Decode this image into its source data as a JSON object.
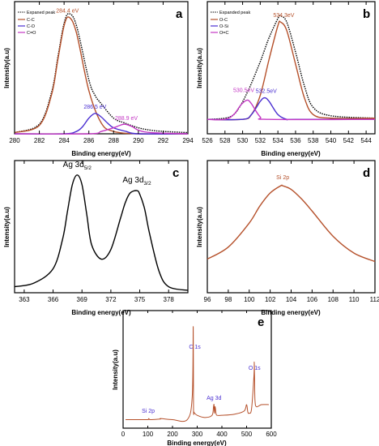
{
  "chart_data": [
    {
      "panel": "a",
      "type": "line",
      "xlabel": "Binding energy(eV)",
      "ylabel": "Intensity(a.u)",
      "xlim": [
        280,
        294
      ],
      "ylim": [
        0,
        1.1
      ],
      "xticks": [
        280,
        282,
        284,
        286,
        288,
        290,
        292,
        294
      ],
      "legend": {
        "placement": "top-left"
      },
      "series": [
        {
          "name": "Expaned peak",
          "color": "#000000",
          "dash": true,
          "x": [
            280,
            282,
            283,
            283.5,
            284,
            284.4,
            285,
            286,
            286.5,
            287,
            288,
            288.9,
            290,
            291,
            292,
            294
          ],
          "values": [
            0.01,
            0.08,
            0.35,
            0.64,
            0.92,
            1.0,
            0.9,
            0.45,
            0.32,
            0.25,
            0.13,
            0.09,
            0.05,
            0.03,
            0.02,
            0.01
          ]
        },
        {
          "name": "C-C",
          "color": "#b5502a",
          "x": [
            280,
            282,
            283,
            283.5,
            284,
            284.4,
            285,
            286,
            287,
            288,
            290,
            294
          ],
          "values": [
            0.01,
            0.07,
            0.33,
            0.62,
            0.9,
            0.97,
            0.84,
            0.36,
            0.09,
            0.02,
            0.0,
            0.0
          ]
        },
        {
          "name": "C-O",
          "color": "#4a2fd1",
          "x": [
            280,
            284,
            285,
            285.5,
            286,
            286.5,
            287,
            287.5,
            288,
            289,
            290,
            294
          ],
          "values": [
            0.0,
            0.0,
            0.02,
            0.06,
            0.13,
            0.17,
            0.14,
            0.09,
            0.05,
            0.02,
            0.0,
            0.0
          ]
        },
        {
          "name": "C=O",
          "color": "#c437c4",
          "x": [
            280,
            286,
            287,
            288,
            288.5,
            288.9,
            289.5,
            290,
            291,
            294
          ],
          "values": [
            0.0,
            0.0,
            0.02,
            0.05,
            0.07,
            0.08,
            0.06,
            0.03,
            0.01,
            0.0
          ]
        }
      ],
      "annotations": [
        {
          "text": "284.4 eV",
          "x": 284.4,
          "color": "#b5502a"
        },
        {
          "text": "286.5 eV",
          "x": 286.5,
          "color": "#4a2fd1"
        },
        {
          "text": "288.9 eV",
          "x": 288.9,
          "color": "#c437c4"
        }
      ]
    },
    {
      "panel": "b",
      "type": "line",
      "xlabel": "Binding energy(eV)",
      "ylabel": "Intensity(a.u)",
      "xlim": [
        526,
        545
      ],
      "ylim": [
        0,
        1.1
      ],
      "xticks": [
        526,
        528,
        530,
        532,
        534,
        536,
        538,
        540,
        542,
        544
      ],
      "legend": {
        "placement": "top-left"
      },
      "series": [
        {
          "name": "Expanded peak",
          "color": "#000000",
          "dash": true,
          "x": [
            526,
            528,
            529,
            529.8,
            530.5,
            531,
            532,
            532.5,
            533,
            534,
            534.3,
            535,
            536,
            537,
            538,
            540,
            545
          ],
          "values": [
            0.12,
            0.13,
            0.16,
            0.24,
            0.34,
            0.42,
            0.6,
            0.7,
            0.8,
            0.96,
            0.98,
            0.93,
            0.68,
            0.4,
            0.22,
            0.15,
            0.13
          ]
        },
        {
          "name": "O-C",
          "color": "#b5502a",
          "x": [
            526,
            530,
            531,
            532,
            533,
            534,
            534.3,
            535,
            536,
            537,
            538,
            540,
            545
          ],
          "values": [
            0.12,
            0.12,
            0.16,
            0.32,
            0.62,
            0.9,
            0.93,
            0.86,
            0.58,
            0.3,
            0.16,
            0.13,
            0.13
          ]
        },
        {
          "name": "O-Si",
          "color": "#4a2fd1",
          "x": [
            526,
            530,
            531,
            532,
            532.5,
            533,
            534,
            535,
            536,
            545
          ],
          "values": [
            0.12,
            0.12,
            0.16,
            0.27,
            0.3,
            0.27,
            0.16,
            0.12,
            0.12,
            0.12
          ]
        },
        {
          "name": "O=C",
          "color": "#c437c4",
          "x": [
            526,
            528,
            529,
            529.8,
            530.5,
            531,
            532,
            533,
            545
          ],
          "values": [
            0.12,
            0.12,
            0.16,
            0.24,
            0.28,
            0.25,
            0.14,
            0.12,
            0.12
          ]
        }
      ],
      "annotations": [
        {
          "text": "534.3eV",
          "x": 534.3,
          "color": "#b5502a"
        },
        {
          "text": "530.5eV",
          "x": 530.5,
          "color": "#c437c4"
        },
        {
          "text": "532.5eV",
          "x": 532.5,
          "color": "#4a2fd1"
        }
      ]
    },
    {
      "panel": "c",
      "type": "line",
      "xlabel": "Binding energy(eV)",
      "ylabel": "Intensity(a.u)",
      "xlim": [
        362,
        380
      ],
      "ylim": [
        0,
        1.1
      ],
      "xticks": [
        363,
        366,
        369,
        372,
        375,
        378
      ],
      "series": [
        {
          "color": "#000000",
          "x": [
            362,
            364,
            366,
            367,
            367.5,
            368,
            368.5,
            369,
            369.5,
            370,
            371,
            372,
            373,
            373.5,
            374,
            374.7,
            375,
            375.5,
            376,
            377,
            378,
            380
          ],
          "values": [
            0.05,
            0.08,
            0.2,
            0.45,
            0.68,
            0.9,
            0.98,
            0.9,
            0.65,
            0.4,
            0.28,
            0.36,
            0.62,
            0.75,
            0.83,
            0.85,
            0.82,
            0.7,
            0.5,
            0.18,
            0.05,
            0.02
          ]
        }
      ],
      "annotations": [
        {
          "text": "Ag 3d",
          "sub": "5/2",
          "x": 368.5
        },
        {
          "text": "Ag 3d",
          "sub": "3/2",
          "x": 374.7
        }
      ]
    },
    {
      "panel": "d",
      "type": "line",
      "xlabel": "Binding energy(eV)",
      "ylabel": "Intensity(a.u)",
      "xlim": [
        96,
        112
      ],
      "ylim": [
        0,
        1.1
      ],
      "xticks": [
        96,
        98,
        100,
        102,
        104,
        106,
        108,
        110,
        112
      ],
      "series": [
        {
          "color": "#b5502a",
          "x": [
            96,
            98,
            100,
            101,
            102,
            103,
            103.2,
            104,
            105,
            106,
            108,
            110,
            112
          ],
          "values": [
            0.28,
            0.38,
            0.58,
            0.72,
            0.83,
            0.89,
            0.89,
            0.86,
            0.78,
            0.68,
            0.47,
            0.33,
            0.26
          ]
        }
      ],
      "annotations": [
        {
          "text": "Si 2p",
          "x": 103.2,
          "color": "#b5502a"
        }
      ]
    },
    {
      "panel": "e",
      "type": "line",
      "xlabel": "Binding energy(eV)",
      "ylabel": "Intensity(a.u)",
      "xlim": [
        0,
        600
      ],
      "ylim": [
        0,
        1.1
      ],
      "xticks": [
        0,
        100,
        200,
        300,
        400,
        500,
        600
      ],
      "series": [
        {
          "color": "#b5502a",
          "x": [
            10,
            50,
            70,
            100,
            104,
            110,
            150,
            152,
            200,
            260,
            280,
            284,
            285,
            287,
            290,
            300,
            330,
            360,
            366,
            368,
            370,
            372,
            374,
            376,
            380,
            400,
            450,
            490,
            500,
            505,
            510,
            520,
            530,
            531,
            532,
            534,
            540,
            560,
            590
          ],
          "values": [
            0.08,
            0.08,
            0.08,
            0.08,
            0.09,
            0.08,
            0.085,
            0.09,
            0.08,
            0.08,
            0.3,
            0.95,
            0.2,
            0.15,
            0.14,
            0.12,
            0.1,
            0.12,
            0.2,
            0.22,
            0.14,
            0.2,
            0.18,
            0.14,
            0.12,
            0.12,
            0.13,
            0.16,
            0.22,
            0.15,
            0.14,
            0.18,
            0.5,
            0.62,
            0.5,
            0.26,
            0.2,
            0.22,
            0.22
          ]
        }
      ],
      "annotations": [
        {
          "text": "C 1s",
          "x": 284,
          "color": "#4a2fd1"
        },
        {
          "text": "Ag 3d",
          "x": 368,
          "color": "#4a2fd1"
        },
        {
          "text": "O 1s",
          "x": 532,
          "color": "#4a2fd1"
        },
        {
          "text": "Si 2p",
          "x": 102,
          "color": "#4a2fd1"
        }
      ]
    }
  ],
  "panels": {
    "a": {
      "letter": "a",
      "xlabel": "Binding energy(eV)",
      "ylabel": "Intensity(a.u)",
      "legend": [
        "Expaned peak",
        "C-C",
        "C-O",
        "C=O"
      ]
    },
    "b": {
      "letter": "b",
      "xlabel": "Binding energy(eV)",
      "ylabel": "Intensity(a.u)",
      "legend": [
        "Expanded peak",
        "O-C",
        "O-Si",
        "O=C"
      ]
    },
    "c": {
      "letter": "c",
      "xlabel": "Binding energy(eV)",
      "ylabel": "Intensity(a.u)"
    },
    "d": {
      "letter": "d",
      "xlabel": "Binding energy(eV)",
      "ylabel": "Intensity(a.u)"
    },
    "e": {
      "letter": "e",
      "xlabel": "Binding energy(eV)",
      "ylabel": "Intensity(a.u)"
    }
  }
}
